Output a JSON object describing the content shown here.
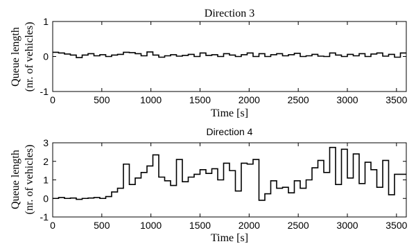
{
  "chart_data": [
    {
      "type": "line",
      "step": "post",
      "title": "Direction 3",
      "xlabel": "Time [s]",
      "ylabel_line1": "Queue length",
      "ylabel_line2": "(nr. of vehicles)",
      "xlim": [
        0,
        3600
      ],
      "ylim": [
        -1,
        1
      ],
      "xticks": [
        0,
        500,
        1000,
        1500,
        2000,
        2500,
        3000,
        3500
      ],
      "yticks": [
        -1,
        0,
        1
      ],
      "grid": false,
      "series": [
        {
          "color": "#000000",
          "x": [
            0,
            60,
            120,
            180,
            240,
            300,
            360,
            420,
            480,
            540,
            600,
            660,
            720,
            780,
            840,
            900,
            960,
            1020,
            1080,
            1140,
            1200,
            1260,
            1320,
            1380,
            1440,
            1500,
            1560,
            1620,
            1680,
            1740,
            1800,
            1860,
            1920,
            1980,
            2040,
            2100,
            2160,
            2220,
            2280,
            2340,
            2400,
            2460,
            2520,
            2580,
            2640,
            2700,
            2760,
            2820,
            2880,
            2940,
            3000,
            3060,
            3120,
            3180,
            3240,
            3300,
            3360,
            3420,
            3480,
            3540,
            3600
          ],
          "y": [
            0.12,
            0.1,
            0.07,
            0.04,
            -0.03,
            0.04,
            0.08,
            0.02,
            0.05,
            0.0,
            0.04,
            0.06,
            0.12,
            0.11,
            0.08,
            0.02,
            0.13,
            0.04,
            -0.02,
            0.02,
            0.05,
            0.01,
            0.03,
            0.06,
            0.0,
            0.1,
            0.03,
            0.05,
            0.0,
            0.08,
            0.04,
            0.0,
            0.05,
            0.1,
            0.0,
            0.08,
            0.0,
            0.05,
            0.08,
            0.02,
            0.05,
            0.09,
            0.0,
            0.02,
            0.06,
            0.01,
            0.0,
            0.1,
            0.04,
            0.0,
            0.06,
            0.02,
            0.08,
            0.0,
            0.07,
            0.1,
            0.01,
            0.06,
            -0.02,
            0.1,
            0.1
          ]
        }
      ]
    },
    {
      "type": "line",
      "step": "post",
      "title": "Direction 4",
      "xlabel": "Time [s]",
      "ylabel_line1": "Queue length",
      "ylabel_line2": "(nr. of vehicles)",
      "xlim": [
        0,
        3600
      ],
      "ylim": [
        -1,
        3
      ],
      "xticks": [
        0,
        500,
        1000,
        1500,
        2000,
        2500,
        3000,
        3500
      ],
      "yticks": [
        -1,
        0,
        1,
        2,
        3
      ],
      "grid": false,
      "series": [
        {
          "color": "#000000",
          "x": [
            0,
            60,
            120,
            180,
            240,
            300,
            360,
            420,
            480,
            540,
            600,
            660,
            720,
            780,
            840,
            900,
            960,
            1020,
            1080,
            1140,
            1200,
            1260,
            1320,
            1380,
            1440,
            1500,
            1560,
            1620,
            1680,
            1740,
            1800,
            1860,
            1920,
            1980,
            2040,
            2100,
            2160,
            2220,
            2280,
            2340,
            2400,
            2460,
            2520,
            2580,
            2640,
            2700,
            2760,
            2820,
            2880,
            2940,
            3000,
            3060,
            3120,
            3180,
            3240,
            3300,
            3360,
            3420,
            3480,
            3540,
            3600
          ],
          "y": [
            0.0,
            0.05,
            0.0,
            0.02,
            -0.05,
            0.0,
            0.02,
            0.05,
            0.0,
            0.1,
            0.35,
            0.55,
            1.85,
            0.75,
            1.1,
            1.4,
            1.75,
            2.35,
            1.15,
            0.95,
            0.7,
            2.1,
            0.9,
            1.15,
            1.3,
            1.55,
            1.35,
            1.6,
            1.0,
            1.9,
            1.5,
            0.4,
            1.9,
            1.85,
            2.1,
            -0.1,
            0.25,
            0.95,
            0.55,
            0.6,
            0.3,
            0.95,
            0.55,
            1.0,
            1.65,
            2.05,
            1.4,
            2.75,
            0.75,
            2.65,
            1.1,
            2.4,
            0.8,
            1.95,
            1.55,
            0.6,
            2.05,
            0.2,
            1.3,
            1.3,
            1.3
          ]
        }
      ]
    }
  ]
}
